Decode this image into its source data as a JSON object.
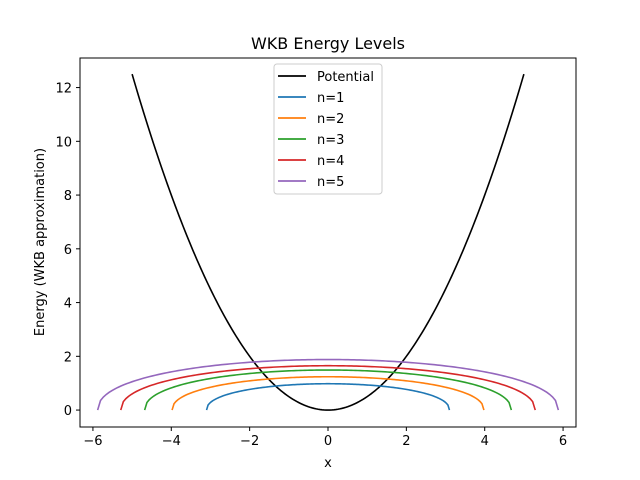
{
  "chart_data": {
    "type": "line",
    "title": "WKB Energy Levels",
    "xlabel": "x",
    "ylabel": "Energy (WKB approximation)",
    "xlim": [
      -6.33,
      6.33
    ],
    "ylim": [
      -0.63,
      13.1
    ],
    "xticks": [
      -6,
      -4,
      -2,
      0,
      2,
      4,
      6
    ],
    "xtick_labels": [
      "−6",
      "−4",
      "−2",
      "0",
      "2",
      "4",
      "6"
    ],
    "yticks": [
      0,
      2,
      4,
      6,
      8,
      10,
      12
    ],
    "ytick_labels": [
      "0",
      "2",
      "4",
      "6",
      "8",
      "10",
      "12"
    ],
    "grid": false,
    "legend_position": "top-center",
    "potential": {
      "name": "Potential",
      "color": "#000000",
      "x_range": [
        -5,
        5
      ],
      "formula": "0.5*x^2"
    },
    "series": [
      {
        "name": "n=1",
        "color": "#1f77b4",
        "E": 0.98,
        "x_turn": 3.1
      },
      {
        "name": "n=2",
        "color": "#ff7f0e",
        "E": 1.24,
        "x_turn": 3.98
      },
      {
        "name": "n=3",
        "color": "#2ca02c",
        "E": 1.49,
        "x_turn": 4.68
      },
      {
        "name": "n=4",
        "color": "#d62728",
        "E": 1.65,
        "x_turn": 5.29
      },
      {
        "name": "n=5",
        "color": "#9467bd",
        "E": 1.88,
        "x_turn": 5.88
      }
    ]
  }
}
